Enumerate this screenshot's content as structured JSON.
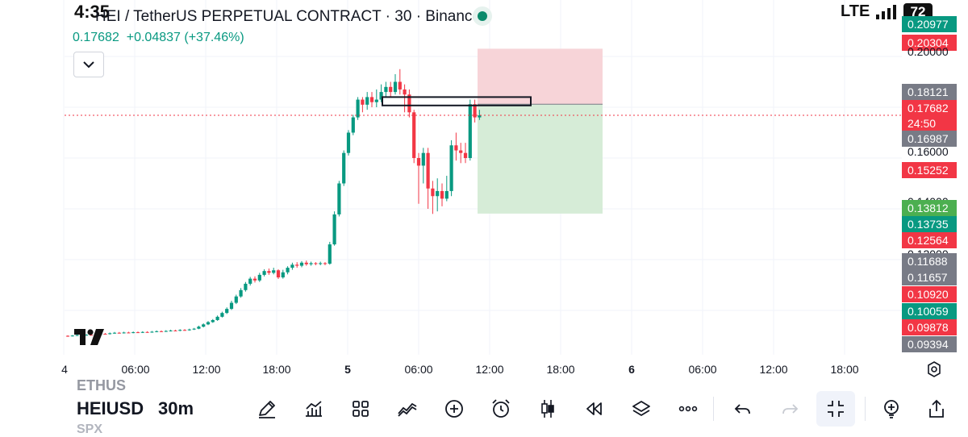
{
  "status_bar": {
    "time": "4:35",
    "network": "LTE",
    "battery": "72"
  },
  "header": {
    "title": "HEI / TetherUS PERPETUAL CONTRACT · 30 · Binance",
    "last_price": "0.17682",
    "change": "+0.04837",
    "change_pct": "(+37.46%)"
  },
  "price_axis_labels": [
    {
      "text": "0.20977",
      "kind": "green"
    },
    {
      "text": "0.20304",
      "kind": "red"
    },
    {
      "text": "0.20000",
      "kind": "plain"
    },
    {
      "text": "0.18121",
      "kind": "gray"
    },
    {
      "text": "0.17682",
      "kind": "red"
    },
    {
      "text": "24:50",
      "kind": "red"
    },
    {
      "text": "0.16987",
      "kind": "gray"
    },
    {
      "text": "0.16000",
      "kind": "plain"
    },
    {
      "text": "0.15252",
      "kind": "red"
    },
    {
      "text": "0.14000",
      "kind": "plain"
    },
    {
      "text": "0.13812",
      "kind": "lightgreen"
    },
    {
      "text": "0.13735",
      "kind": "green"
    },
    {
      "text": "0.12564",
      "kind": "red"
    },
    {
      "text": "0.12000",
      "kind": "plain"
    },
    {
      "text": "0.11688",
      "kind": "gray"
    },
    {
      "text": "0.11657",
      "kind": "gray"
    },
    {
      "text": "0.10920",
      "kind": "red"
    },
    {
      "text": "0.10059",
      "kind": "green"
    },
    {
      "text": "0.09878",
      "kind": "red"
    },
    {
      "text": "0.09394",
      "kind": "gray"
    }
  ],
  "time_axis": [
    "4",
    "06:00",
    "12:00",
    "18:00",
    "5",
    "06:00",
    "12:00",
    "18:00",
    "6",
    "06:00",
    "12:00",
    "18:00"
  ],
  "chart_data": {
    "type": "candlestick",
    "interval": "30m",
    "price_unit": "USDT",
    "ylim": [
      0.085,
      0.215
    ],
    "position_tool": {
      "entry": 0.18121,
      "stop": 0.20304,
      "target": 0.13812
    },
    "highlight_box": {
      "top": 0.184,
      "bottom": 0.1807
    },
    "candles": [
      [
        0.09,
        0.0898,
        0.0902,
        0.0896
      ],
      [
        0.0899,
        0.0901,
        0.0903,
        0.0897
      ],
      [
        0.0901,
        0.0903,
        0.0905,
        0.0899
      ],
      [
        0.0903,
        0.0902,
        0.0906,
        0.09
      ],
      [
        0.0902,
        0.0904,
        0.0907,
        0.09
      ],
      [
        0.0904,
        0.0903,
        0.0907,
        0.0901
      ],
      [
        0.0903,
        0.0906,
        0.0909,
        0.0901
      ],
      [
        0.0906,
        0.0908,
        0.0911,
        0.0904
      ],
      [
        0.0908,
        0.0907,
        0.0911,
        0.0905
      ],
      [
        0.0907,
        0.091,
        0.0913,
        0.0905
      ],
      [
        0.091,
        0.0912,
        0.0915,
        0.0908
      ],
      [
        0.0912,
        0.0911,
        0.0915,
        0.0909
      ],
      [
        0.0911,
        0.0913,
        0.0916,
        0.0909
      ],
      [
        0.0913,
        0.0912,
        0.0916,
        0.091
      ],
      [
        0.0912,
        0.0914,
        0.0917,
        0.091
      ],
      [
        0.0914,
        0.0913,
        0.0917,
        0.0911
      ],
      [
        0.0913,
        0.0915,
        0.0918,
        0.0911
      ],
      [
        0.0915,
        0.0914,
        0.0918,
        0.0912
      ],
      [
        0.0914,
        0.0916,
        0.0919,
        0.0912
      ],
      [
        0.0916,
        0.0918,
        0.0921,
        0.0914
      ],
      [
        0.0918,
        0.0917,
        0.0921,
        0.0915
      ],
      [
        0.0917,
        0.0919,
        0.0922,
        0.0915
      ],
      [
        0.0919,
        0.0921,
        0.0924,
        0.0917
      ],
      [
        0.0921,
        0.092,
        0.0924,
        0.0918
      ],
      [
        0.092,
        0.0923,
        0.0926,
        0.0918
      ],
      [
        0.0923,
        0.0922,
        0.0926,
        0.092
      ],
      [
        0.0922,
        0.0925,
        0.0928,
        0.092
      ],
      [
        0.0925,
        0.0928,
        0.0931,
        0.0923
      ],
      [
        0.0928,
        0.0936,
        0.094,
        0.0926
      ],
      [
        0.0936,
        0.0945,
        0.0949,
        0.0933
      ],
      [
        0.0945,
        0.0954,
        0.0958,
        0.0942
      ],
      [
        0.0954,
        0.0962,
        0.0966,
        0.0951
      ],
      [
        0.0962,
        0.0975,
        0.098,
        0.0959
      ],
      [
        0.0975,
        0.099,
        0.0995,
        0.0972
      ],
      [
        0.099,
        0.1006,
        0.1012,
        0.0986
      ],
      [
        0.1006,
        0.103,
        0.1038,
        0.1002
      ],
      [
        0.103,
        0.1055,
        0.1062,
        0.1025
      ],
      [
        0.1055,
        0.108,
        0.1088,
        0.105
      ],
      [
        0.108,
        0.1105,
        0.1112,
        0.1074
      ],
      [
        0.1105,
        0.1125,
        0.1132,
        0.1098
      ],
      [
        0.1125,
        0.1118,
        0.1134,
        0.111
      ],
      [
        0.1118,
        0.114,
        0.1148,
        0.1112
      ],
      [
        0.114,
        0.1155,
        0.1162,
        0.1134
      ],
      [
        0.1155,
        0.1148,
        0.1165,
        0.114
      ],
      [
        0.1148,
        0.1158,
        0.1168,
        0.1142
      ],
      [
        0.1158,
        0.113,
        0.1162,
        0.1124
      ],
      [
        0.113,
        0.115,
        0.116,
        0.1125
      ],
      [
        0.115,
        0.1168,
        0.1174,
        0.1142
      ],
      [
        0.1168,
        0.118,
        0.1188,
        0.116
      ],
      [
        0.118,
        0.1176,
        0.119,
        0.1168
      ],
      [
        0.1176,
        0.1188,
        0.1194,
        0.117
      ],
      [
        0.1188,
        0.1182,
        0.1196,
        0.1176
      ],
      [
        0.1182,
        0.1186,
        0.1192,
        0.1176
      ],
      [
        0.1186,
        0.1184,
        0.119,
        0.1178
      ],
      [
        0.1184,
        0.1186,
        0.1192,
        0.1178
      ],
      [
        0.1186,
        0.1184,
        0.119,
        0.1178
      ],
      [
        0.1184,
        0.126,
        0.127,
        0.118
      ],
      [
        0.126,
        0.1378,
        0.139,
        0.1255
      ],
      [
        0.1378,
        0.15,
        0.151,
        0.137
      ],
      [
        0.15,
        0.162,
        0.163,
        0.149
      ],
      [
        0.162,
        0.17,
        0.171,
        0.161
      ],
      [
        0.17,
        0.176,
        0.177,
        0.169
      ],
      [
        0.176,
        0.183,
        0.184,
        0.175
      ],
      [
        0.183,
        0.181,
        0.184,
        0.178
      ],
      [
        0.181,
        0.184,
        0.186,
        0.179
      ],
      [
        0.184,
        0.182,
        0.186,
        0.18
      ],
      [
        0.182,
        0.183,
        0.187,
        0.18
      ],
      [
        0.183,
        0.186,
        0.189,
        0.182
      ],
      [
        0.186,
        0.188,
        0.19,
        0.184
      ],
      [
        0.188,
        0.186,
        0.19,
        0.184
      ],
      [
        0.186,
        0.19,
        0.193,
        0.185
      ],
      [
        0.19,
        0.187,
        0.195,
        0.185
      ],
      [
        0.187,
        0.185,
        0.189,
        0.178
      ],
      [
        0.185,
        0.178,
        0.187,
        0.176
      ],
      [
        0.178,
        0.16,
        0.179,
        0.158
      ],
      [
        0.16,
        0.157,
        0.162,
        0.142
      ],
      [
        0.157,
        0.162,
        0.164,
        0.15
      ],
      [
        0.162,
        0.148,
        0.164,
        0.14
      ],
      [
        0.148,
        0.145,
        0.151,
        0.138
      ],
      [
        0.145,
        0.147,
        0.152,
        0.139
      ],
      [
        0.147,
        0.144,
        0.15,
        0.141
      ],
      [
        0.144,
        0.147,
        0.153,
        0.143
      ],
      [
        0.147,
        0.165,
        0.167,
        0.145
      ],
      [
        0.165,
        0.163,
        0.17,
        0.159
      ],
      [
        0.163,
        0.162,
        0.166,
        0.158
      ],
      [
        0.162,
        0.16,
        0.166,
        0.158
      ],
      [
        0.16,
        0.1812,
        0.183,
        0.159
      ],
      [
        0.1812,
        0.176,
        0.183,
        0.174
      ],
      [
        0.176,
        0.1768,
        0.179,
        0.175
      ]
    ]
  },
  "bottom_bar": {
    "symbol_prev": "ETHUS",
    "symbol_current": "HEIUSD",
    "symbol_next": "SPX",
    "interval": "30m"
  }
}
